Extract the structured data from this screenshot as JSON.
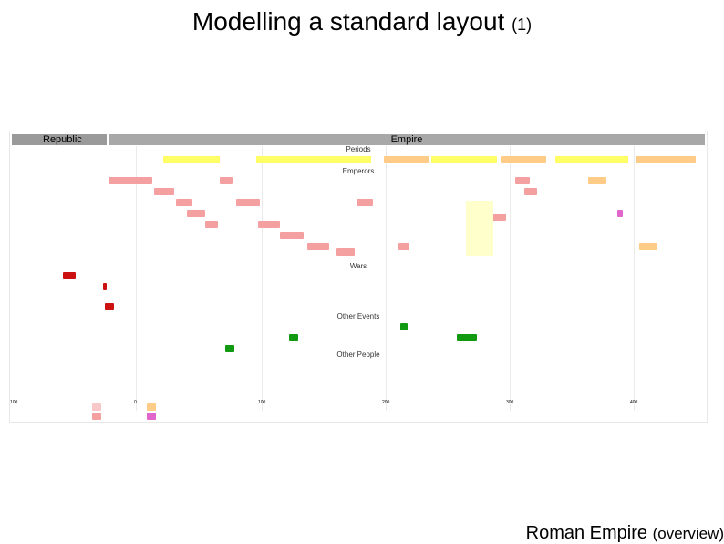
{
  "title": {
    "main": "Modelling a standard layout",
    "suffix": "(1)"
  },
  "timeline": {
    "header_left": "Republic",
    "header_right": "Empire",
    "band_periods": "Periods",
    "band_emperors": "Emperors",
    "band_wars": "Wars",
    "band_events": "Other Events",
    "band_people": "Other People",
    "axis_ticks": [
      "100",
      "0",
      "100",
      "200",
      "300",
      "400"
    ]
  },
  "caption": {
    "main": "Roman Empire",
    "suffix": "(overview)"
  },
  "colors": {
    "republic_bar": "#9a9a9a",
    "empire_bar": "#a8a8a8",
    "periods_yellow": "#ffff66",
    "periods_orange": "#ffcc88",
    "emperor_pink": "#f4a0a0",
    "war_red": "#cc1111",
    "event_green": "#119911"
  }
}
